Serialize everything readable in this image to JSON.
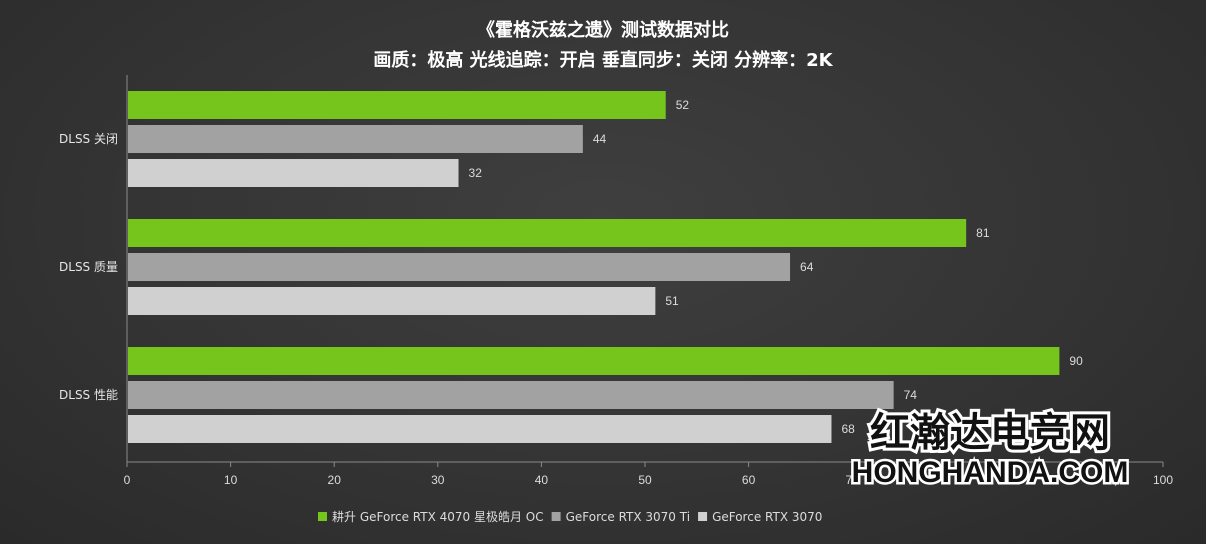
{
  "chart_data": {
    "type": "bar",
    "orientation": "horizontal",
    "title": "《霍格沃兹之遗》测试数据对比",
    "subtitle": "画质：极高  光线追踪：开启  垂直同步：关闭  分辨率：2K",
    "categories": [
      "DLSS 关闭",
      "DLSS 质量",
      "DLSS 性能"
    ],
    "series": [
      {
        "name": "耕升 GeForce RTX 4070 星极皓月 OC",
        "color": "#76c51c",
        "values": [
          52,
          81,
          90
        ]
      },
      {
        "name": "GeForce RTX 3070 Ti",
        "color": "#a2a2a2",
        "values": [
          44,
          64,
          74
        ]
      },
      {
        "name": "GeForce RTX 3070",
        "color": "#d0d0d0",
        "values": [
          32,
          51,
          68
        ]
      }
    ],
    "xlim": [
      0,
      100
    ],
    "xticks": [
      0,
      10,
      20,
      30,
      40,
      50,
      60,
      70,
      100
    ],
    "legend_position": "bottom",
    "grid": false
  },
  "watermark": {
    "cn": "红瀚达电竞网",
    "en": "HONGHANDA.COM"
  }
}
